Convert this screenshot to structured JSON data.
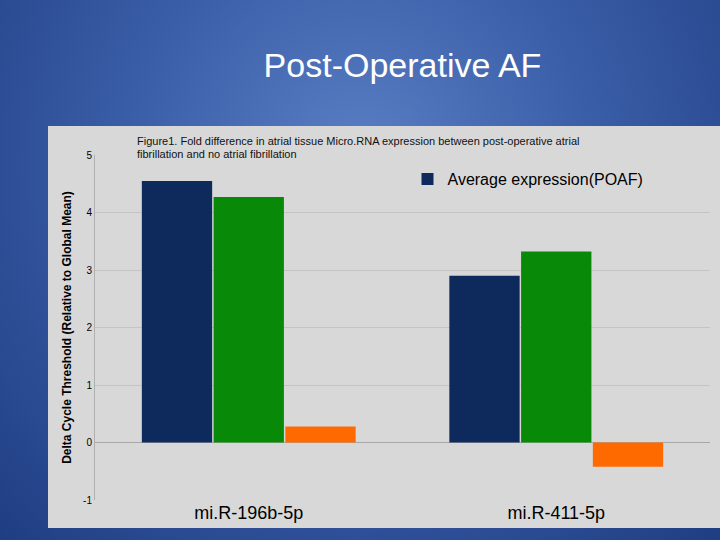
{
  "chart_data": {
    "type": "bar",
    "title": "Post-Operative AF",
    "subtitle": "Figure1.  Fold difference in atrial tissue Micro.RNA expression between post-operative atrial fibrillation and no atrial fibrillation",
    "y_label": "Delta Cycle Threshold (Relative to Global Mean)",
    "categories": [
      "mi.R-196b-5p",
      "mi.R-411-5p"
    ],
    "series": [
      {
        "name": "Average expression(POAF)",
        "color": "#0e2a5c",
        "values": [
          4.55,
          2.9
        ]
      },
      {
        "color": "#088a08",
        "values": [
          4.27,
          3.32
        ]
      },
      {
        "color": "#ff6a00",
        "values": [
          0.28,
          -0.42
        ]
      }
    ],
    "ylim": [
      -1,
      5
    ],
    "yticks": [
      -1,
      0,
      1,
      2,
      3,
      4,
      5
    ],
    "grid": true,
    "legend": "top right"
  }
}
